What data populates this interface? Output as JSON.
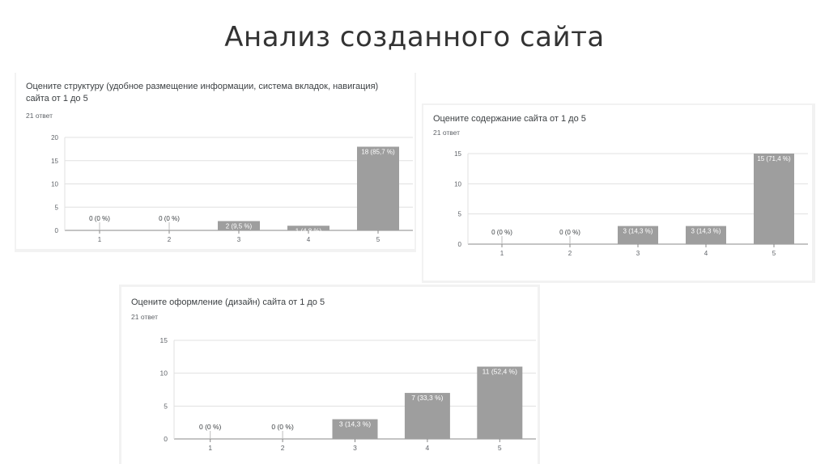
{
  "slide": {
    "title": "Анализ созданного сайта"
  },
  "charts": [
    {
      "question": "Оцените структуру (удобное размещение информации, система вкладок, навигация) сайта от 1 до 5",
      "responses": "21 ответ"
    },
    {
      "question": "Оцените содержание сайта от 1 до 5",
      "responses": "21 ответ"
    },
    {
      "question": "Оцените оформление (дизайн) сайта от 1 до 5",
      "responses": "21 ответ"
    }
  ],
  "colors": {
    "bar": "#9e9e9e",
    "axis": "#888888",
    "grid": "#e0e0e0",
    "card_shadow": "#f2f2f2"
  },
  "chart_data": [
    {
      "type": "bar",
      "categories": [
        "1",
        "2",
        "3",
        "4",
        "5"
      ],
      "values": [
        0,
        0,
        2,
        1,
        18
      ],
      "labels": [
        "0 (0 %)",
        "0 (0 %)",
        "2 (9,5 %)",
        "1 (4,8 %)",
        "18 (85,7 %)"
      ],
      "yticks": [
        0,
        5,
        10,
        15,
        20
      ],
      "ylim": [
        0,
        20
      ],
      "grid": true
    },
    {
      "type": "bar",
      "categories": [
        "1",
        "2",
        "3",
        "4",
        "5"
      ],
      "values": [
        0,
        0,
        3,
        3,
        15
      ],
      "labels": [
        "0 (0 %)",
        "0 (0 %)",
        "3 (14,3 %)",
        "3 (14,3 %)",
        "15 (71,4 %)"
      ],
      "yticks": [
        0,
        5,
        10,
        15
      ],
      "ylim": [
        0,
        15
      ],
      "grid": true
    },
    {
      "type": "bar",
      "categories": [
        "1",
        "2",
        "3",
        "4",
        "5"
      ],
      "values": [
        0,
        0,
        3,
        7,
        11
      ],
      "labels": [
        "0 (0 %)",
        "0 (0 %)",
        "3 (14,3 %)",
        "7 (33,3 %)",
        "11 (52,4 %)"
      ],
      "yticks": [
        0,
        5,
        10,
        15
      ],
      "ylim": [
        0,
        15
      ],
      "grid": true
    }
  ]
}
